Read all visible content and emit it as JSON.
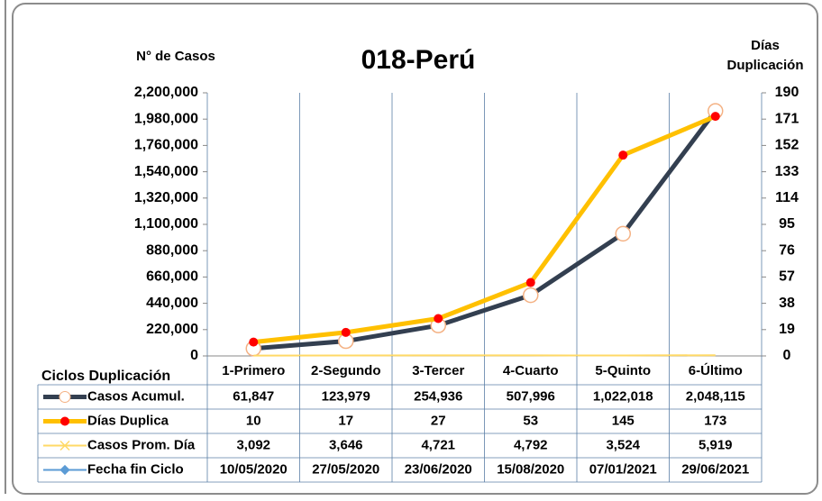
{
  "chart_data": {
    "type": "line",
    "title": "018-Perú",
    "y_label": "N° de Casos",
    "y2_label": "Días Duplicación",
    "table_header": "Ciclos Duplicación",
    "categories": [
      "1-Primero",
      "2-Segundo",
      "3-Tercer",
      "4-Cuarto",
      "5-Quinto",
      "6-Último"
    ],
    "ylim": [
      0,
      2200000
    ],
    "yticks": [
      0,
      {
        "value": 220000,
        "label": "220,000"
      },
      {
        "value": 440000,
        "label": "440,000"
      },
      {
        "value": 660000,
        "label": "660,000"
      },
      {
        "value": 880000,
        "label": "880,000"
      },
      {
        "value": 1100000,
        "label": "1,100,000"
      },
      {
        "value": 1320000,
        "label": "1,320,000"
      },
      {
        "value": 1540000,
        "label": "1,540,000"
      },
      {
        "value": 1760000,
        "label": "1,760,000"
      },
      {
        "value": 1980000,
        "label": "1,980,000"
      },
      {
        "value": 2200000,
        "label": "2,200,000"
      }
    ],
    "y2lim": [
      0,
      190
    ],
    "y2ticks": [
      0,
      19,
      38,
      57,
      76,
      95,
      114,
      133,
      152,
      171,
      190
    ],
    "series": [
      {
        "name": "Casos Acumul.",
        "color": "#333f50",
        "marker_color": "#f4b183",
        "values": [
          61847,
          123979,
          254936,
          507996,
          1022018,
          2048115
        ],
        "value_labels": [
          "61,847",
          "123,979",
          "254,936",
          "507,996",
          "1,022,018",
          "2,048,115"
        ]
      },
      {
        "name": "Días Duplica",
        "color": "#ffc000",
        "marker_color": "#ff0000",
        "axis": "y2",
        "values": [
          10,
          17,
          27,
          53,
          145,
          173
        ]
      },
      {
        "name": "Casos Prom. Día",
        "color": "#ffd966",
        "values": [
          3092,
          3646,
          4721,
          4792,
          3524,
          5919
        ],
        "value_labels": [
          "3,092",
          "3,646",
          "4,721",
          "4,792",
          "3,524",
          "5,919"
        ]
      },
      {
        "name": "Fecha fin Ciclo",
        "color": "#5b9bd5",
        "values": [
          "10/05/2020",
          "27/05/2020",
          "23/06/2020",
          "15/08/2020",
          "07/01/2021",
          "29/06/2021"
        ]
      }
    ]
  }
}
